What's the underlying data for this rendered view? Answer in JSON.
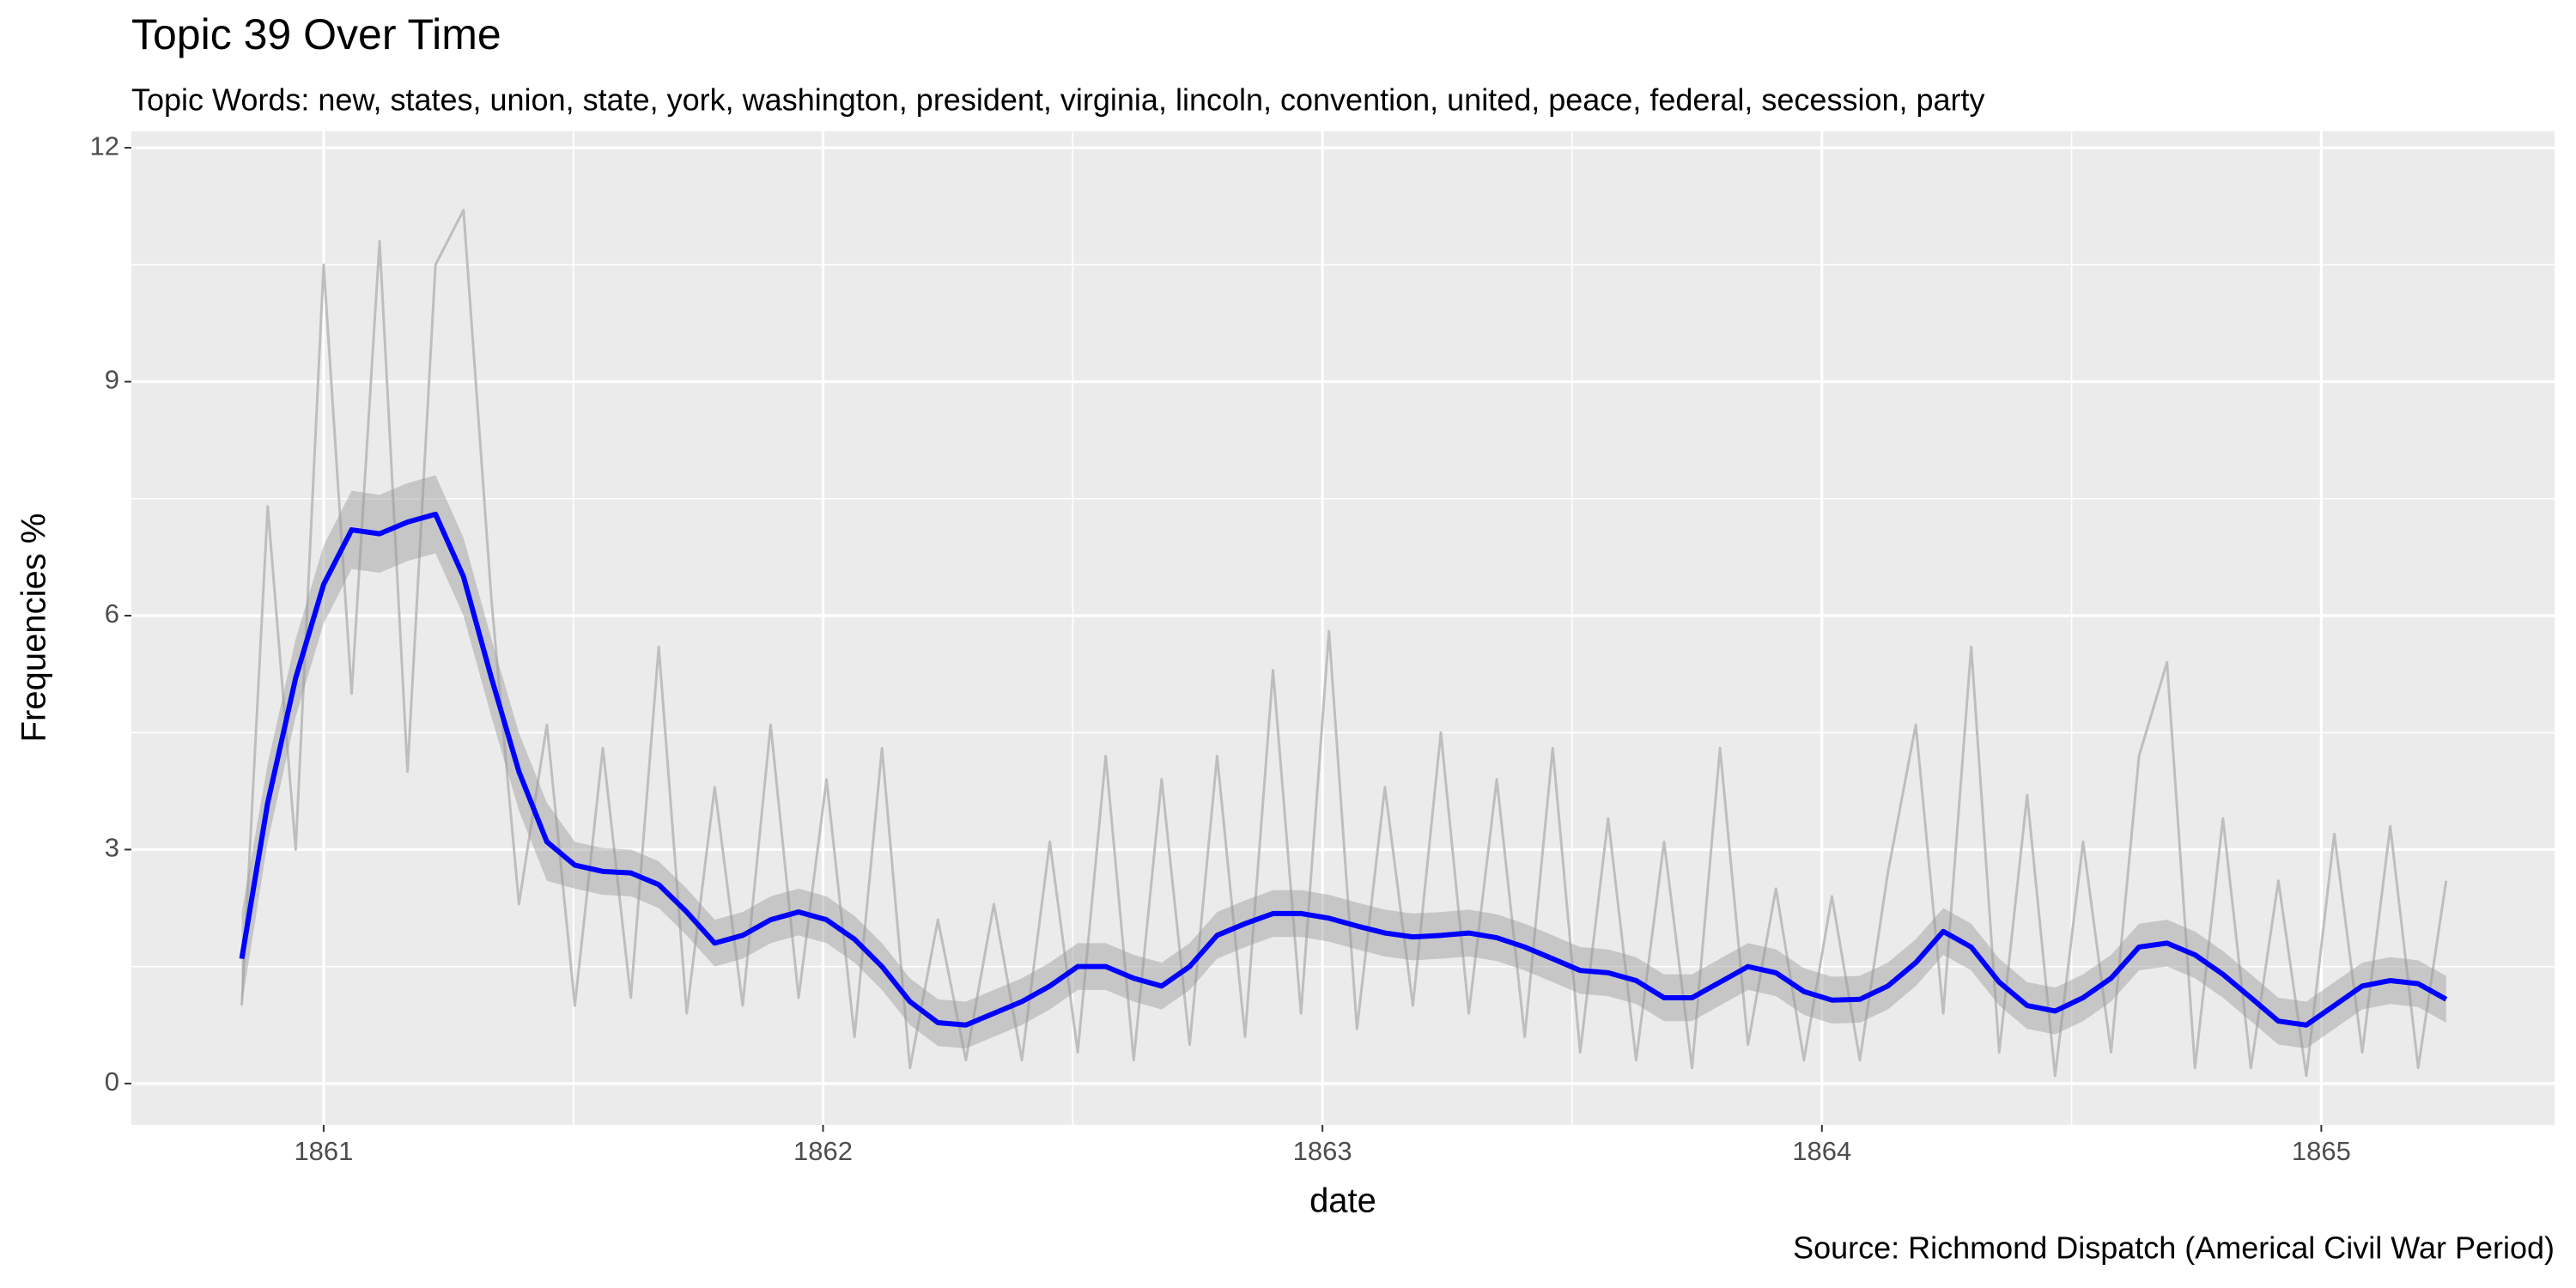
{
  "chart_data": {
    "type": "line",
    "title": "Topic 39 Over Time",
    "subtitle": "Topic Words: new, states, union, state, york, washington, president, virginia, lincoln, convention, united, peace, federal, secession, party",
    "caption": "Source: Richmond Dispatch (Americal Civil War Period)",
    "x_label": "date",
    "y_label": "Frequencies %",
    "x": [
      1860.836,
      1860.888,
      1860.944,
      1861.0,
      1861.056,
      1861.112,
      1861.168,
      1861.224,
      1861.28,
      1861.336,
      1861.391,
      1861.447,
      1861.503,
      1861.559,
      1861.615,
      1861.671,
      1861.727,
      1861.783,
      1861.839,
      1861.895,
      1861.951,
      1862.007,
      1862.063,
      1862.118,
      1862.174,
      1862.23,
      1862.286,
      1862.342,
      1862.398,
      1862.454,
      1862.51,
      1862.566,
      1862.622,
      1862.678,
      1862.734,
      1862.789,
      1862.845,
      1862.901,
      1862.957,
      1863.013,
      1863.069,
      1863.125,
      1863.181,
      1863.237,
      1863.293,
      1863.349,
      1863.405,
      1863.461,
      1863.516,
      1863.572,
      1863.628,
      1863.684,
      1863.74,
      1863.796,
      1863.852,
      1863.908,
      1863.964,
      1864.02,
      1864.076,
      1864.132,
      1864.188,
      1864.243,
      1864.299,
      1864.355,
      1864.411,
      1864.467,
      1864.523,
      1864.579,
      1864.635,
      1864.691,
      1864.747,
      1864.803,
      1864.859,
      1864.914,
      1864.97,
      1865.026,
      1865.082,
      1865.138,
      1865.194,
      1865.25
    ],
    "series": [
      {
        "color": "#bebebe",
        "values": [
          1.0,
          7.4,
          3.0,
          10.5,
          5.0,
          10.8,
          4.0,
          10.5,
          11.2,
          6.2,
          2.3,
          4.6,
          1.0,
          4.3,
          1.1,
          5.6,
          0.9,
          3.8,
          1.0,
          4.6,
          1.1,
          3.9,
          0.6,
          4.3,
          0.2,
          2.1,
          0.3,
          2.3,
          0.3,
          3.1,
          0.4,
          4.2,
          0.3,
          3.9,
          0.5,
          4.2,
          0.6,
          5.3,
          0.9,
          5.8,
          0.7,
          3.8,
          1.0,
          4.5,
          0.9,
          3.9,
          0.6,
          4.3,
          0.4,
          3.4,
          0.3,
          3.1,
          0.2,
          4.3,
          0.5,
          2.5,
          0.3,
          2.4,
          0.3,
          2.7,
          4.6,
          0.9,
          5.6,
          0.4,
          3.7,
          0.1,
          3.1,
          0.4,
          4.2,
          5.4,
          0.2,
          3.4,
          0.2,
          2.6,
          0.1,
          3.2,
          0.4,
          3.3,
          0.2,
          2.6
        ]
      },
      {
        "color": "#0000ff",
        "band_color": "#999999",
        "values": [
          1.6,
          3.6,
          5.2,
          6.4,
          7.1,
          7.05,
          7.2,
          7.3,
          6.5,
          5.2,
          4.0,
          3.1,
          2.8,
          2.72,
          2.7,
          2.55,
          2.2,
          1.8,
          1.9,
          2.1,
          2.2,
          2.1,
          1.85,
          1.5,
          1.05,
          0.78,
          0.75,
          0.9,
          1.05,
          1.25,
          1.5,
          1.5,
          1.35,
          1.25,
          1.5,
          1.9,
          2.05,
          2.18,
          2.18,
          2.12,
          2.02,
          1.93,
          1.88,
          1.9,
          1.93,
          1.87,
          1.75,
          1.6,
          1.45,
          1.42,
          1.32,
          1.1,
          1.1,
          1.3,
          1.5,
          1.42,
          1.18,
          1.07,
          1.08,
          1.25,
          1.55,
          1.95,
          1.75,
          1.3,
          1.0,
          0.93,
          1.1,
          1.35,
          1.75,
          1.8,
          1.65,
          1.4,
          1.1,
          0.8,
          0.75,
          1.0,
          1.25,
          1.32,
          1.28,
          1.08
        ],
        "lower": [
          1.0,
          3.1,
          4.7,
          5.9,
          6.6,
          6.55,
          6.7,
          6.8,
          6.0,
          4.7,
          3.5,
          2.6,
          2.5,
          2.42,
          2.4,
          2.25,
          1.9,
          1.5,
          1.6,
          1.8,
          1.9,
          1.8,
          1.55,
          1.2,
          0.75,
          0.48,
          0.45,
          0.6,
          0.75,
          0.95,
          1.2,
          1.2,
          1.05,
          0.95,
          1.2,
          1.6,
          1.75,
          1.88,
          1.88,
          1.82,
          1.72,
          1.63,
          1.58,
          1.6,
          1.63,
          1.57,
          1.45,
          1.3,
          1.15,
          1.12,
          1.02,
          0.8,
          0.8,
          1.0,
          1.2,
          1.12,
          0.88,
          0.77,
          0.78,
          0.95,
          1.25,
          1.65,
          1.45,
          1.0,
          0.7,
          0.63,
          0.8,
          1.05,
          1.45,
          1.5,
          1.35,
          1.1,
          0.8,
          0.5,
          0.45,
          0.7,
          0.95,
          1.02,
          0.98,
          0.78
        ],
        "upper": [
          2.2,
          4.1,
          5.7,
          6.9,
          7.6,
          7.55,
          7.7,
          7.8,
          7.0,
          5.7,
          4.5,
          3.6,
          3.1,
          3.02,
          3.0,
          2.85,
          2.5,
          2.1,
          2.2,
          2.4,
          2.5,
          2.4,
          2.15,
          1.8,
          1.35,
          1.08,
          1.05,
          1.2,
          1.35,
          1.55,
          1.8,
          1.8,
          1.65,
          1.55,
          1.8,
          2.2,
          2.35,
          2.48,
          2.48,
          2.42,
          2.32,
          2.23,
          2.18,
          2.2,
          2.23,
          2.17,
          2.05,
          1.9,
          1.75,
          1.72,
          1.62,
          1.4,
          1.4,
          1.6,
          1.8,
          1.72,
          1.48,
          1.37,
          1.38,
          1.55,
          1.85,
          2.25,
          2.05,
          1.6,
          1.3,
          1.23,
          1.4,
          1.65,
          2.05,
          2.1,
          1.95,
          1.7,
          1.4,
          1.1,
          1.05,
          1.3,
          1.55,
          1.62,
          1.58,
          1.38
        ]
      }
    ],
    "xlim": [
      1860.615,
      1865.467
    ],
    "ylim": [
      -0.53,
      12.21
    ],
    "xticks": [
      1861,
      1862,
      1863,
      1864,
      1865
    ],
    "yticks": [
      0,
      3,
      6,
      9,
      12
    ],
    "grid": true
  }
}
